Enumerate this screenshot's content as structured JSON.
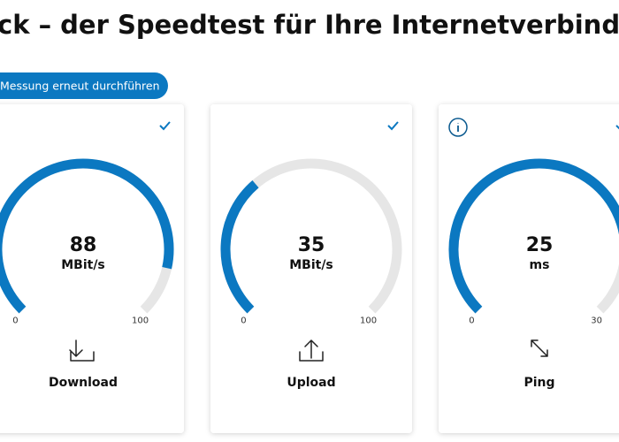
{
  "header": {
    "title": "ck – der Speedtest für Ihre Internetverbindun"
  },
  "button": {
    "label": "Messung erneut durchführen"
  },
  "cards": [
    {
      "value": 88,
      "unit": "MBit/s",
      "min": 0,
      "max": 100,
      "label": "Download"
    },
    {
      "value": 35,
      "unit": "MBit/s",
      "min": 0,
      "max": 100,
      "label": "Upload"
    },
    {
      "value": 25,
      "unit": "ms",
      "min": 0,
      "max": 30,
      "label": "Ping"
    }
  ]
}
